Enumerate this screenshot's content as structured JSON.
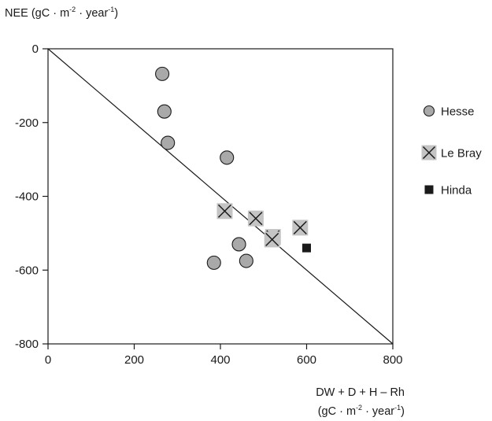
{
  "chart_data": {
    "type": "scatter",
    "ylabel_main": "NEE (gC · m",
    "ylabel_exp1": "-2",
    "ylabel_mid": " · year",
    "ylabel_exp2": "-1",
    "ylabel_end": ")",
    "xlabel_line1": "DW + D + H – Rh",
    "xlabel_line2_main": "(gC · m",
    "xlabel_line2_exp1": "-2",
    "xlabel_line2_mid": " · year",
    "xlabel_line2_exp2": "-1",
    "xlabel_line2_end": ")",
    "xlim": [
      0,
      800
    ],
    "ylim": [
      -800,
      0
    ],
    "x_ticks": [
      0,
      200,
      400,
      600,
      800
    ],
    "x_tick_labels": [
      "0",
      "200",
      "400",
      "600",
      "800"
    ],
    "y_ticks": [
      0,
      -200,
      -400,
      -600,
      -800
    ],
    "y_tick_labels": [
      "0",
      "-200",
      "-400",
      "-600",
      "-800"
    ],
    "grid": false,
    "legend_position": "right",
    "reference_line": {
      "x": [
        0,
        800
      ],
      "y": [
        0,
        -800
      ]
    },
    "series": [
      {
        "name": "Hesse",
        "marker": "circle",
        "color": "#a9a9a9",
        "points": [
          {
            "x": 265,
            "y": -68
          },
          {
            "x": 270,
            "y": -170
          },
          {
            "x": 278,
            "y": -255
          },
          {
            "x": 415,
            "y": -295
          },
          {
            "x": 443,
            "y": -530
          },
          {
            "x": 385,
            "y": -580
          },
          {
            "x": 460,
            "y": -575
          }
        ]
      },
      {
        "name": "Le Bray",
        "marker": "x-box",
        "color": "#c4c4c4",
        "points": [
          {
            "x": 410,
            "y": -440
          },
          {
            "x": 482,
            "y": -460
          },
          {
            "x": 522,
            "y": -510
          },
          {
            "x": 520,
            "y": -517
          },
          {
            "x": 585,
            "y": -485
          }
        ]
      },
      {
        "name": "Hinda",
        "marker": "square",
        "color": "#1a1a1a",
        "points": [
          {
            "x": 600,
            "y": -540
          }
        ]
      }
    ]
  }
}
